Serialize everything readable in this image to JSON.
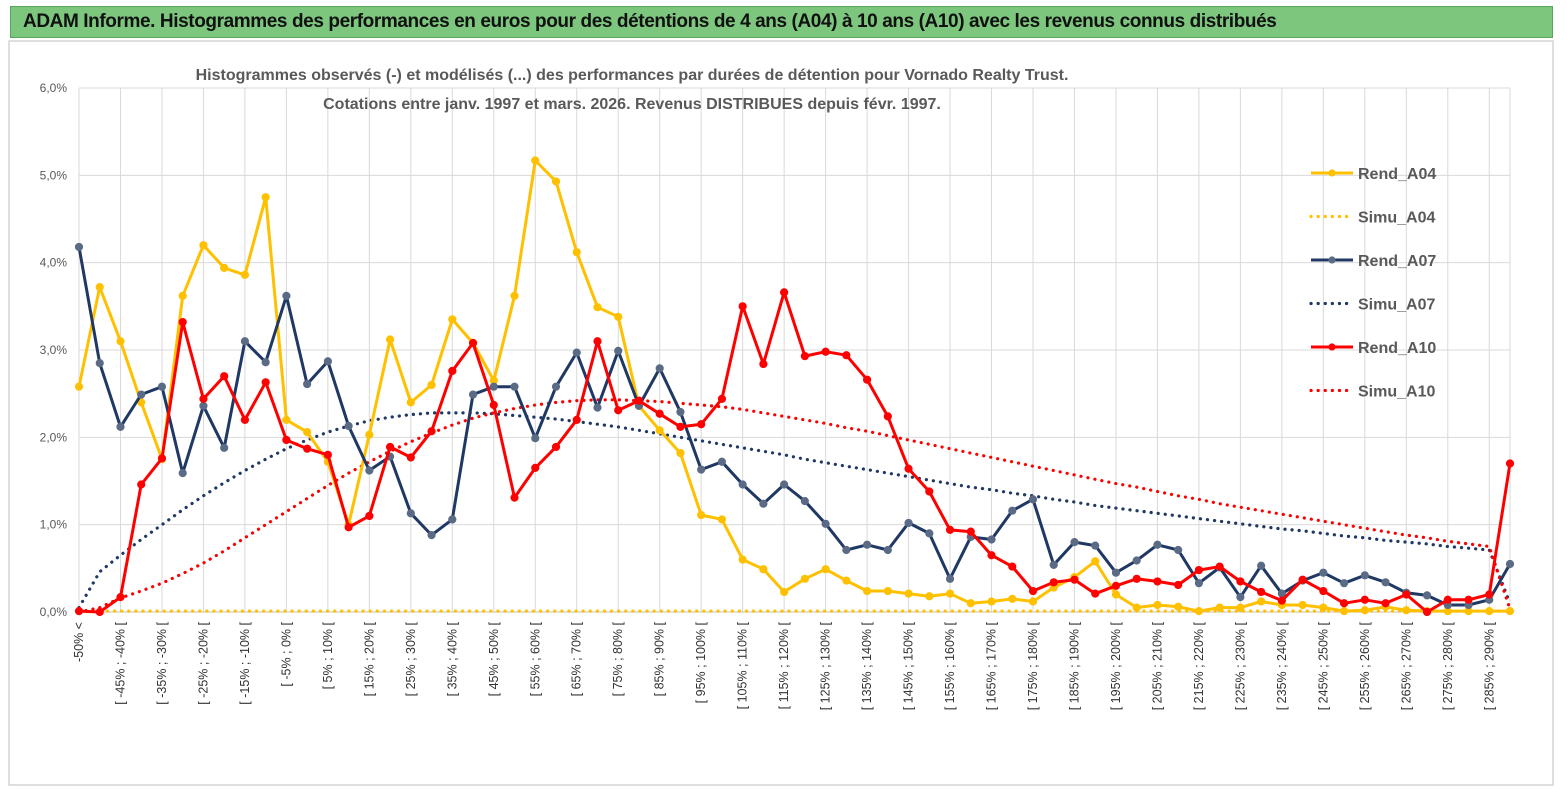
{
  "banner": {
    "text": "ADAM Informe. Histogrammes des performances en euros pour des détentions de 4 ans (A04) à 10 ans (A10) avec les revenus connus distribués",
    "color": "#7cc67d"
  },
  "chart_data": {
    "type": "line",
    "title": "Histogrammes observés (-) et modélisés (...) des performances par durées de détention pour Vornado Realty Trust.",
    "subtitle": "Cotations entre janv. 1997 et mars. 2026. Revenus DISTRIBUES depuis févr. 1997.",
    "xlabel": "",
    "ylabel": "",
    "ylim": [
      0,
      6
    ],
    "y_ticks": [
      "0,0%",
      "1,0%",
      "2,0%",
      "3,0%",
      "4,0%",
      "5,0%",
      "6,0%"
    ],
    "x_tick_labels": [
      "-50% <",
      "[ -45% ; -40% [",
      "[ -35% ; -30% [",
      "[ -25% ; -20% [",
      "[ -15% ; -10% [",
      "[ -5% ; 0% [",
      "[ 5% ; 10% [",
      "[ 15% ; 20% [",
      "[ 25% ; 30% [",
      "[ 35% ; 40% [",
      "[ 45% ; 50% [",
      "[ 55% ; 60% [",
      "[ 65% ; 70% [",
      "[ 75% ; 80% [",
      "[ 85% ; 90% [",
      "[ 95% ; 100% [",
      "[ 105% ; 110% [",
      "[ 115% ; 120% [",
      "[ 125% ; 130% [",
      "[ 135% ; 140% [",
      "[ 145% ; 150% [",
      "[ 155% ; 160% [",
      "[ 165% ; 170% [",
      "[ 175% ; 180% [",
      "[ 185% ; 190% [",
      "[ 195% ; 200% [",
      "[ 205% ; 210% [",
      "[ 215% ; 220% [",
      "[ 225% ; 230% [",
      "[ 235% ; 240% [",
      "[ 245% ; 250% [",
      "[ 255% ; 260% [",
      "[ 265% ; 270% [",
      "[ 275% ; 280% [",
      "[ 285% ; 290% ["
    ],
    "legend_position": "right",
    "grid": true,
    "series": [
      {
        "name": "Rend_A04",
        "color": "#ffc000",
        "style": "solid",
        "values": [
          2.58,
          3.72,
          3.1,
          2.4,
          1.75,
          3.62,
          4.2,
          3.94,
          3.86,
          4.75,
          2.2,
          2.06,
          1.72,
          1.0,
          2.03,
          3.12,
          2.4,
          2.6,
          3.35,
          3.08,
          2.65,
          3.62,
          5.17,
          4.93,
          4.12,
          3.49,
          3.38,
          2.36,
          2.08,
          1.82,
          1.11,
          1.06,
          0.6,
          0.49,
          0.23,
          0.38,
          0.49,
          0.36,
          0.24,
          0.24,
          0.21,
          0.18,
          0.21,
          0.1,
          0.12,
          0.15,
          0.12,
          0.28,
          0.4,
          0.58,
          0.2,
          0.05,
          0.08,
          0.06,
          0.01,
          0.05,
          0.05,
          0.12,
          0.08,
          0.08,
          0.05,
          0.01,
          0.02,
          0.06,
          0.02,
          0.01,
          0.01,
          0.01,
          0.01,
          0.01
        ]
      },
      {
        "name": "Simu_A04",
        "color": "#ffc000",
        "style": "dotted",
        "values": [
          0.01,
          0.01,
          0.01,
          0.01,
          0.01,
          0.01,
          0.01,
          0.01,
          0.01,
          0.01,
          0.01,
          0.01,
          0.01,
          0.01,
          0.01,
          0.01,
          0.01,
          0.01,
          0.01,
          0.01,
          0.01,
          0.01,
          0.01,
          0.01,
          0.01,
          0.01,
          0.01,
          0.01,
          0.01,
          0.01,
          0.01,
          0.01,
          0.01,
          0.01,
          0.01,
          0.01,
          0.01,
          0.01,
          0.01,
          0.01,
          0.01,
          0.01,
          0.01,
          0.01,
          0.01,
          0.01,
          0.01,
          0.01,
          0.01,
          0.01,
          0.01,
          0.01,
          0.01,
          0.01,
          0.01,
          0.01,
          0.01,
          0.01,
          0.01,
          0.01,
          0.01,
          0.01,
          0.01,
          0.01,
          0.01,
          0.01,
          0.01,
          0.01,
          0.01,
          0.01
        ]
      },
      {
        "name": "Rend_A07",
        "color": "#1f3864",
        "style": "solid",
        "values": [
          4.18,
          2.85,
          2.12,
          2.49,
          2.58,
          1.59,
          2.36,
          1.88,
          3.1,
          2.86,
          3.62,
          2.61,
          2.87,
          2.13,
          1.62,
          1.78,
          1.13,
          0.88,
          1.06,
          2.49,
          2.58,
          2.58,
          1.99,
          2.58,
          2.97,
          2.34,
          2.99,
          2.36,
          2.79,
          2.29,
          1.63,
          1.72,
          1.46,
          1.24,
          1.46,
          1.27,
          1.01,
          0.71,
          0.77,
          0.71,
          1.02,
          0.9,
          0.38,
          0.86,
          0.83,
          1.16,
          1.29,
          0.54,
          0.8,
          0.76,
          0.45,
          0.59,
          0.77,
          0.71,
          0.33,
          0.51,
          0.17,
          0.53,
          0.21,
          0.36,
          0.45,
          0.33,
          0.42,
          0.34,
          0.22,
          0.19,
          0.08,
          0.08,
          0.14,
          0.55
        ]
      },
      {
        "name": "Simu_A07",
        "color": "#1f3864",
        "style": "dotted",
        "values": [
          0.05,
          0.46,
          0.65,
          0.83,
          1.0,
          1.17,
          1.33,
          1.48,
          1.62,
          1.75,
          1.87,
          1.97,
          2.06,
          2.13,
          2.19,
          2.23,
          2.26,
          2.28,
          2.28,
          2.28,
          2.27,
          2.25,
          2.23,
          2.21,
          2.18,
          2.15,
          2.12,
          2.08,
          2.04,
          2.0,
          1.96,
          1.92,
          1.88,
          1.84,
          1.8,
          1.75,
          1.71,
          1.67,
          1.63,
          1.59,
          1.55,
          1.51,
          1.47,
          1.43,
          1.4,
          1.36,
          1.33,
          1.29,
          1.26,
          1.22,
          1.19,
          1.16,
          1.13,
          1.1,
          1.07,
          1.04,
          1.01,
          0.98,
          0.95,
          0.93,
          0.9,
          0.87,
          0.85,
          0.82,
          0.8,
          0.78,
          0.75,
          0.73,
          0.71,
          0.1
        ]
      },
      {
        "name": "Rend_A10",
        "color": "#ff0000",
        "style": "solid",
        "values": [
          0.01,
          0.0,
          0.17,
          1.46,
          1.76,
          3.32,
          2.44,
          2.7,
          2.2,
          2.63,
          1.97,
          1.87,
          1.8,
          0.97,
          1.1,
          1.89,
          1.77,
          2.07,
          2.76,
          3.08,
          2.37,
          1.31,
          1.65,
          1.89,
          2.2,
          3.1,
          2.31,
          2.42,
          2.27,
          2.12,
          2.15,
          2.44,
          3.5,
          2.84,
          3.66,
          2.93,
          2.98,
          2.94,
          2.66,
          2.24,
          1.64,
          1.38,
          0.94,
          0.92,
          0.65,
          0.52,
          0.24,
          0.34,
          0.37,
          0.21,
          0.3,
          0.38,
          0.35,
          0.31,
          0.48,
          0.52,
          0.35,
          0.23,
          0.13,
          0.37,
          0.24,
          0.1,
          0.14,
          0.1,
          0.2,
          0.0,
          0.14,
          0.14,
          0.2,
          1.7
        ]
      },
      {
        "name": "Simu_A10",
        "color": "#ff0000",
        "style": "dotted",
        "values": [
          0.0,
          0.05,
          0.16,
          0.24,
          0.33,
          0.44,
          0.56,
          0.7,
          0.85,
          1.0,
          1.15,
          1.3,
          1.45,
          1.59,
          1.72,
          1.84,
          1.95,
          2.05,
          2.14,
          2.22,
          2.28,
          2.33,
          2.37,
          2.4,
          2.42,
          2.43,
          2.43,
          2.42,
          2.41,
          2.39,
          2.37,
          2.35,
          2.32,
          2.28,
          2.24,
          2.2,
          2.16,
          2.11,
          2.07,
          2.02,
          1.97,
          1.92,
          1.87,
          1.82,
          1.77,
          1.72,
          1.67,
          1.62,
          1.57,
          1.52,
          1.47,
          1.43,
          1.38,
          1.33,
          1.29,
          1.24,
          1.2,
          1.16,
          1.12,
          1.08,
          1.04,
          1.0,
          0.96,
          0.92,
          0.88,
          0.85,
          0.81,
          0.78,
          0.75,
          0.03
        ]
      }
    ]
  }
}
